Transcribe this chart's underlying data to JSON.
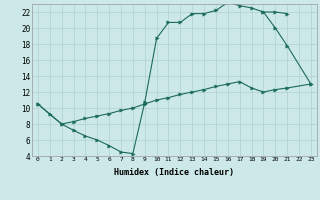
{
  "xlabel": "Humidex (Indice chaleur)",
  "bg_color": "#cde8e8",
  "grid_color": "#aed0d0",
  "line_color": "#1a6b5a",
  "xlim": [
    -0.5,
    23.5
  ],
  "ylim": [
    4,
    23
  ],
  "xticks": [
    0,
    1,
    2,
    3,
    4,
    5,
    6,
    7,
    8,
    9,
    10,
    11,
    12,
    13,
    14,
    15,
    16,
    17,
    18,
    19,
    20,
    21,
    22,
    23
  ],
  "yticks": [
    4,
    6,
    8,
    10,
    12,
    14,
    16,
    18,
    20,
    22
  ],
  "curve1_x": [
    0,
    1,
    2,
    3,
    4,
    5,
    6,
    7,
    8,
    9,
    10,
    11,
    12,
    13,
    14,
    15,
    16,
    17,
    18,
    19,
    20,
    21
  ],
  "curve1_y": [
    10.5,
    9.2,
    8.0,
    7.2,
    6.5,
    6.0,
    5.3,
    4.5,
    4.3,
    10.7,
    18.7,
    20.7,
    20.7,
    21.8,
    21.8,
    22.2,
    23.2,
    22.8,
    22.5,
    22.0,
    22.0,
    21.8
  ],
  "curve2_x": [
    19,
    20,
    21,
    23
  ],
  "curve2_y": [
    22.0,
    20.0,
    17.8,
    13.0
  ],
  "curve3_x": [
    0,
    2,
    3,
    4,
    5,
    6,
    7,
    8,
    9,
    10,
    11,
    12,
    13,
    14,
    15,
    16,
    17,
    18,
    19,
    20,
    21,
    23
  ],
  "curve3_y": [
    10.5,
    8.0,
    8.3,
    8.7,
    9.0,
    9.3,
    9.7,
    10.0,
    10.5,
    11.0,
    11.3,
    11.7,
    12.0,
    12.3,
    12.7,
    13.0,
    13.3,
    12.5,
    12.0,
    12.3,
    12.5,
    13.0
  ]
}
